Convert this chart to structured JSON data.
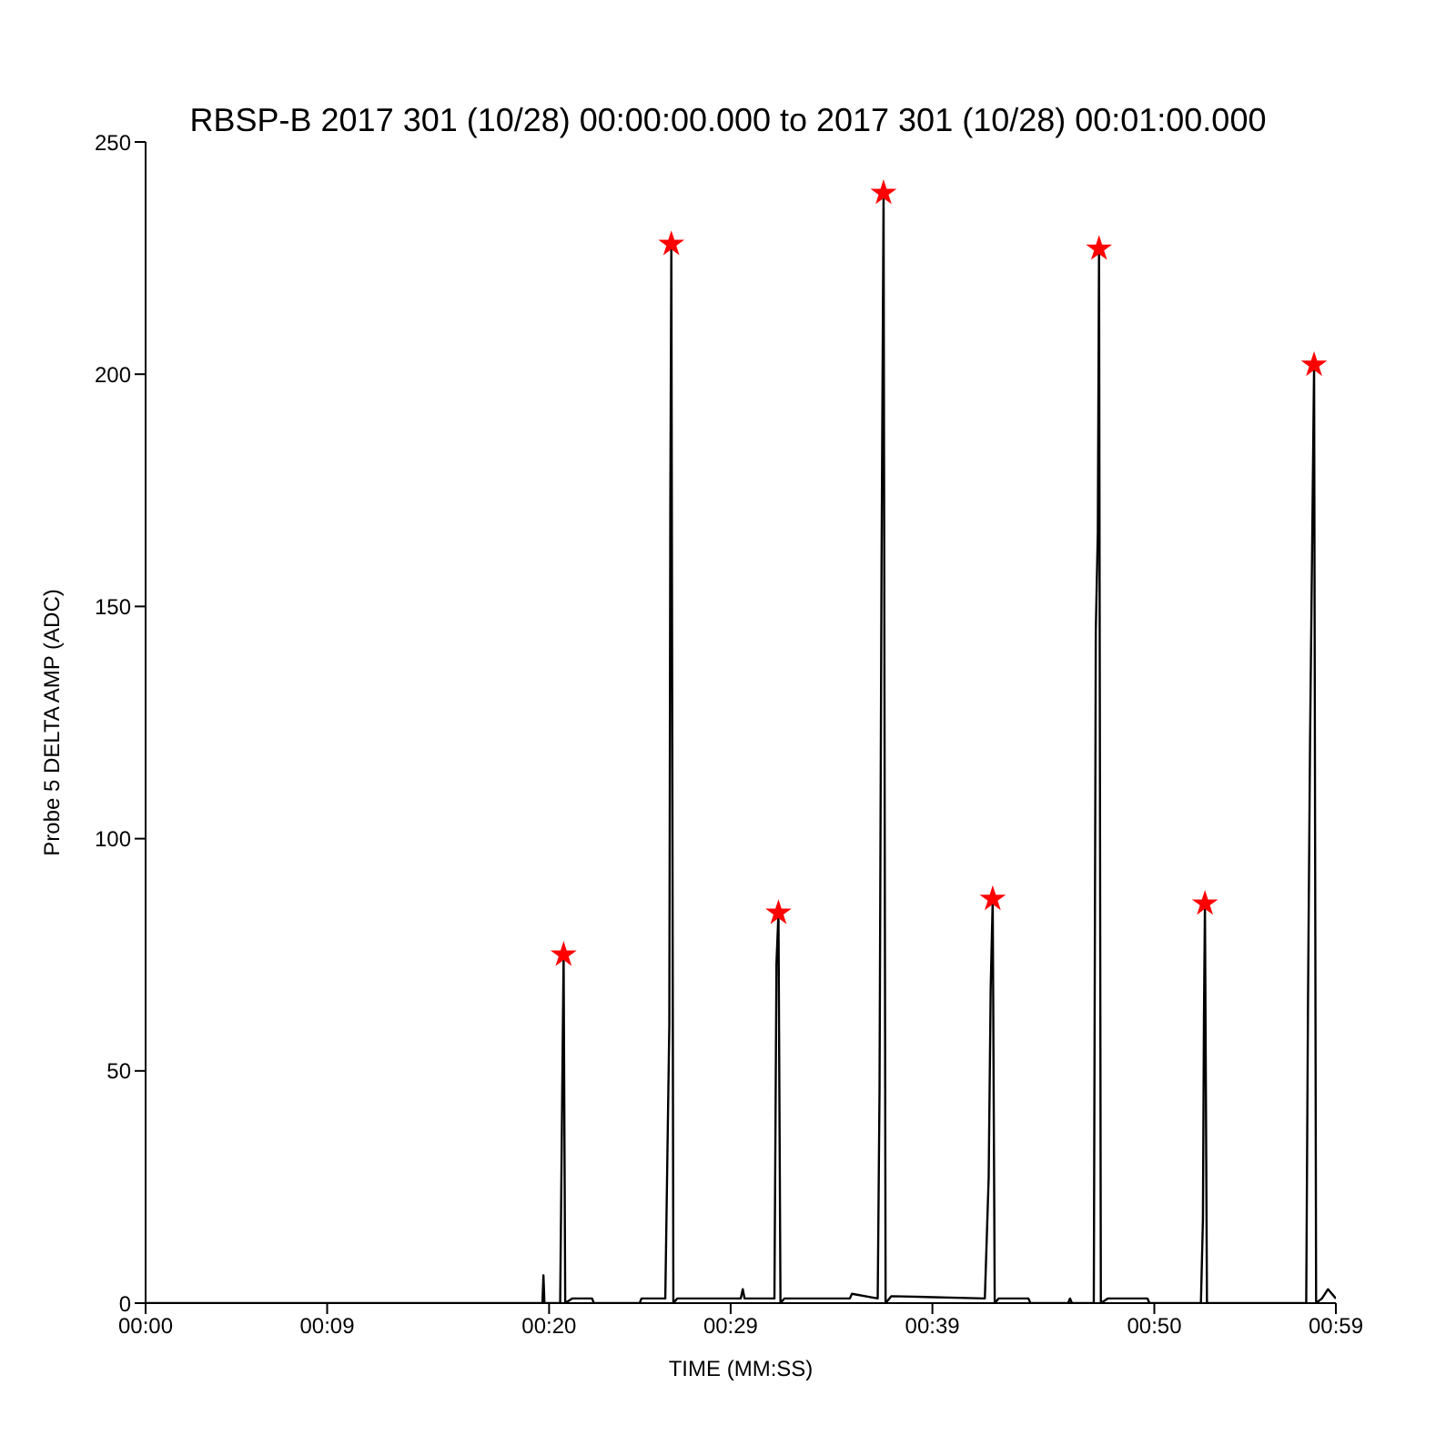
{
  "chart_data": {
    "type": "line",
    "title": "RBSP-B 2017 301 (10/28) 00:00:00.000 to 2017 301 (10/28) 00:01:00.000",
    "xlabel": "TIME (MM:SS)",
    "ylabel": "Probe 5 DELTA AMP (ADC)",
    "xlim": [
      0,
      59
    ],
    "xticks": [
      {
        "value": 0,
        "label": "00:00"
      },
      {
        "value": 9,
        "label": "00:09"
      },
      {
        "value": 20,
        "label": "00:20"
      },
      {
        "value": 29,
        "label": "00:29"
      },
      {
        "value": 39,
        "label": "00:39"
      },
      {
        "value": 50,
        "label": "00:50"
      },
      {
        "value": 59,
        "label": "00:59"
      }
    ],
    "ylim": [
      0,
      250
    ],
    "yticks": [
      0,
      50,
      100,
      150,
      200,
      250
    ],
    "grid": false,
    "series": [
      {
        "color": "#000000",
        "marker": "none",
        "line_style": "solid",
        "x": [
          0,
          19.67,
          19.72,
          19.77,
          20.55,
          20.65,
          20.72,
          20.8,
          21.14,
          22.13,
          22.22,
          24.49,
          24.58,
          25.76,
          25.96,
          26.01,
          26.06,
          26.16,
          26.35,
          29.5,
          29.6,
          29.69,
          31.17,
          31.27,
          31.37,
          31.47,
          31.66,
          34.91,
          35.01,
          36.29,
          36.38,
          36.48,
          36.58,
          36.68,
          36.97,
          41.6,
          41.79,
          41.89,
          41.99,
          42.09,
          42.28,
          43.76,
          43.86,
          45.73,
          45.82,
          45.92,
          47.0,
          47.1,
          47.2,
          47.26,
          47.35,
          47.69,
          49.66,
          49.76,
          52.31,
          52.41,
          52.46,
          52.51,
          52.61,
          57.53,
          57.62,
          57.72,
          57.92,
          58.02,
          58.31,
          58.61,
          59
        ],
        "values": [
          0,
          0,
          6,
          0,
          0,
          45,
          75,
          0,
          1,
          1,
          0,
          0,
          1,
          1,
          60,
          172,
          228,
          0,
          1,
          1,
          3,
          1,
          1,
          73,
          84,
          0,
          1,
          1,
          2,
          1,
          46,
          160,
          239,
          0,
          1.5,
          1,
          27,
          68,
          87,
          0,
          1,
          1,
          0,
          0,
          1,
          0,
          0,
          145,
          166,
          227,
          0,
          1,
          1,
          0,
          0,
          18,
          61,
          86,
          0,
          0,
          66,
          121,
          202,
          0,
          1,
          3,
          1
        ]
      },
      {
        "type": "scatter",
        "color": "#ff0000",
        "marker": "star",
        "x": [
          20.72,
          26.06,
          31.37,
          36.58,
          41.99,
          47.26,
          52.51,
          57.92
        ],
        "values": [
          75,
          228,
          84,
          239,
          87,
          227,
          86,
          202
        ]
      }
    ]
  }
}
